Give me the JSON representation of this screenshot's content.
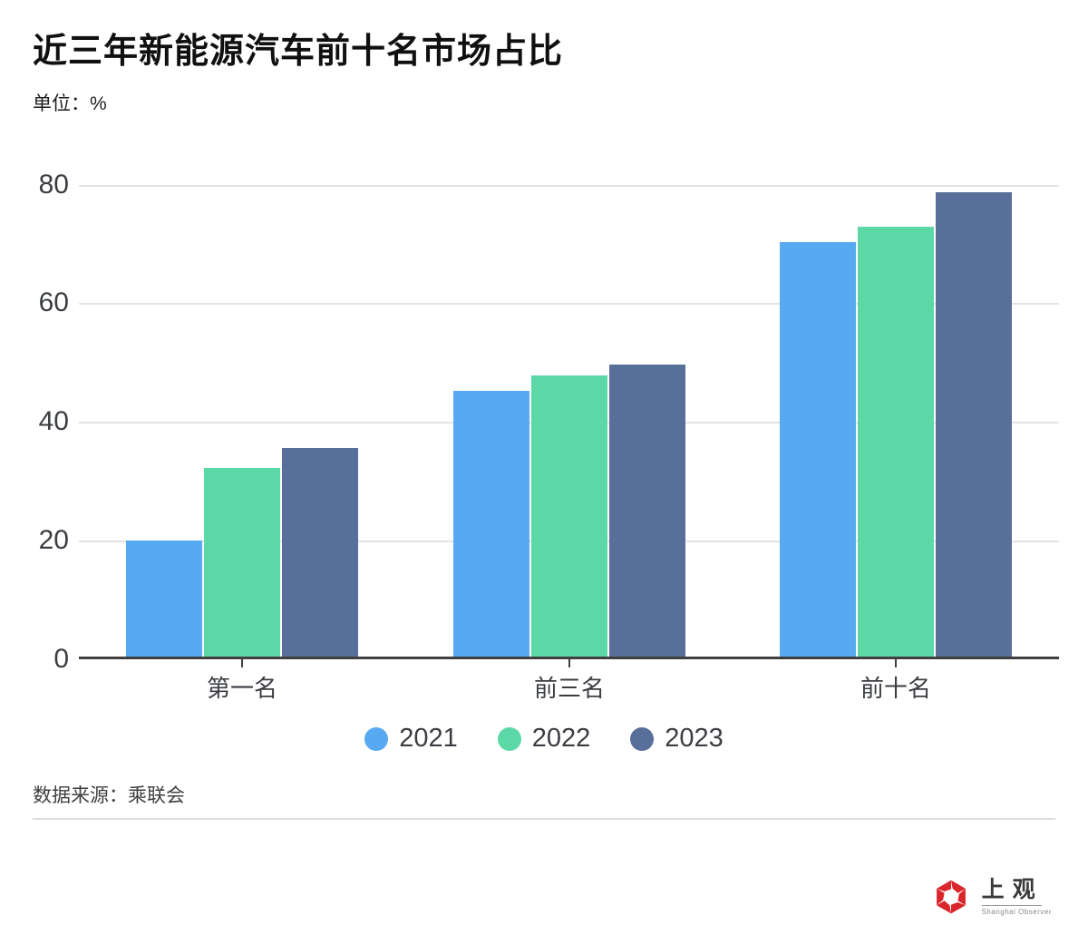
{
  "header": {
    "title": "近三年新能源汽车前十名市场占比",
    "subtitle": "单位：%"
  },
  "chart_data": {
    "type": "bar",
    "title": "近三年新能源汽车前十名市场占比",
    "unit": "%",
    "categories": [
      "第一名",
      "前三名",
      "前十名"
    ],
    "series": [
      {
        "name": "2021",
        "color": "#57A9F1",
        "values": [
          19.5,
          44.8,
          69.9
        ]
      },
      {
        "name": "2022",
        "color": "#5BD8A6",
        "values": [
          31.8,
          47.4,
          72.4
        ]
      },
      {
        "name": "2023",
        "color": "#586F99",
        "values": [
          35.1,
          49.2,
          78.3
        ]
      }
    ],
    "ylim": [
      0,
      80
    ],
    "yticks": [
      0,
      20,
      40,
      60,
      80
    ],
    "grid": true,
    "legend_position": "bottom",
    "axis_color": "#40403f",
    "grid_color": "#e4e4e7"
  },
  "footer": {
    "source": "数据来源：乘联会"
  },
  "logo": {
    "name": "上观",
    "subname": "Shanghai Observer",
    "brand_color": "#D8262C"
  }
}
